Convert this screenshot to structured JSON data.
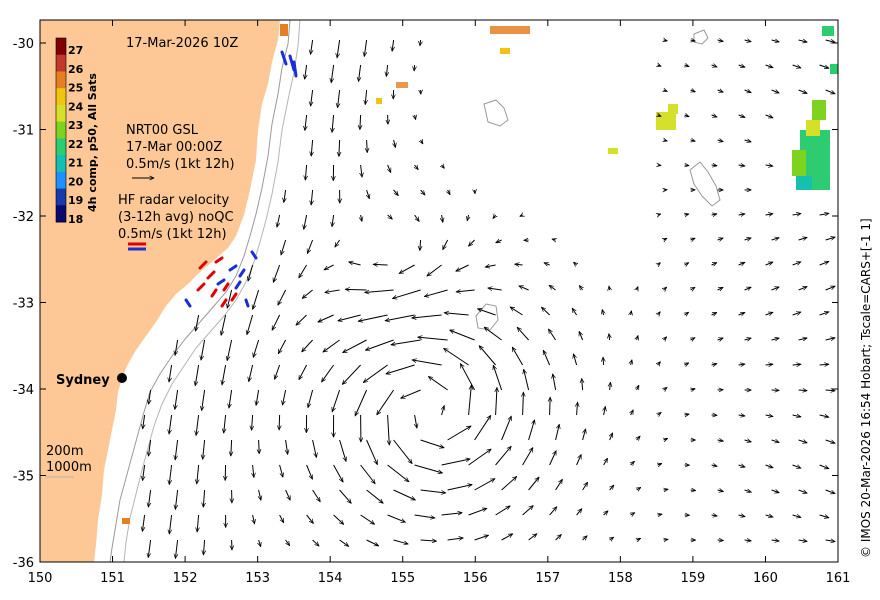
{
  "map": {
    "date_label": "17-Mar-2026 10Z",
    "city_label": "Sydney",
    "x_ticks": [
      "150",
      "151",
      "152",
      "153",
      "154",
      "155",
      "156",
      "157",
      "158",
      "159",
      "160",
      "161"
    ],
    "y_ticks": [
      "-30",
      "-31",
      "-32",
      "-33",
      "-34",
      "-35",
      "-36"
    ],
    "lon_range": [
      150,
      161
    ],
    "lat_range": [
      -36,
      -29.8
    ],
    "land_color": "#fdc896",
    "credit": "© IMOS 20-Mar-2026 16:54 Hobart; Tscale=CARS+[-1 1]"
  },
  "colorbar": {
    "title": "4h comp, p50, All Sats",
    "ticks": [
      "27",
      "26",
      "25",
      "24",
      "23",
      "22",
      "21",
      "20",
      "19",
      "18"
    ],
    "colors": [
      "#7f0000",
      "#c0392b",
      "#e67e22",
      "#f1c40f",
      "#d4e02a",
      "#7ed321",
      "#2ecc71",
      "#16c0b0",
      "#1e90ff",
      "#1a3aa8",
      "#0a0a6e"
    ]
  },
  "legend": {
    "gsl_title": "NRT00 GSL",
    "gsl_time": "17-Mar 00:00Z",
    "gsl_scale": "0.5m/s (1kt 12h)",
    "hf_line1": "HF radar velocity",
    "hf_line2": "(3-12h avg) noQC",
    "hf_scale": "0.5m/s (1kt 12h)",
    "depth_200": "200m",
    "depth_1000": "1000m"
  }
}
